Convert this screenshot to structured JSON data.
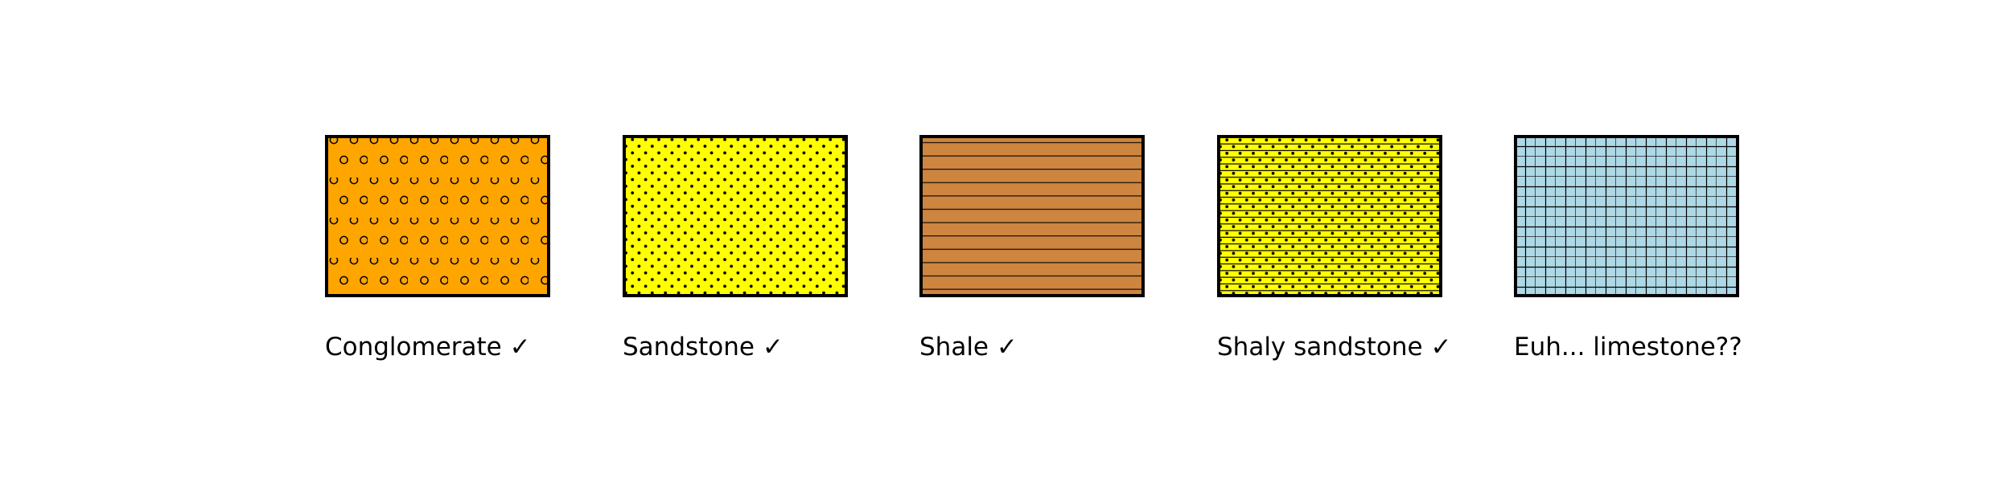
{
  "swatches": [
    {
      "label": "Conglomerate ✓",
      "fill": "#FFA500",
      "pattern": "circles"
    },
    {
      "label": "Sandstone ✓",
      "fill": "#FFFF00",
      "pattern": "dots"
    },
    {
      "label": "Shale ✓",
      "fill": "#CD853F",
      "pattern": "horizontal-lines"
    },
    {
      "label": "Shaly sandstone ✓",
      "fill": "#FFFF00",
      "pattern": "dots-and-lines"
    },
    {
      "label": "Euh... limestone??",
      "fill": "#ADD8E6",
      "pattern": "grid"
    }
  ]
}
